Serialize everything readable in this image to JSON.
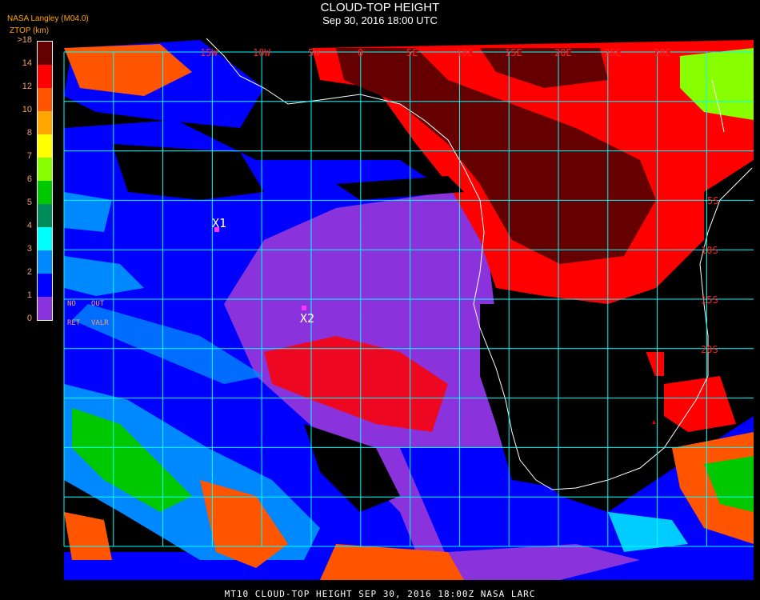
{
  "header": {
    "title": "CLOUD-TOP HEIGHT",
    "subtitle": "Sep 30, 2016 18:00 UTC",
    "org": "NASA Langley (M04.0)",
    "unit_label": "ZTOP (km)"
  },
  "legend": {
    "ticks": [
      "0",
      "1",
      "2",
      "3",
      "4",
      "5",
      "6",
      "7",
      "8",
      "10",
      "12",
      "14",
      ">18"
    ],
    "colors": [
      "#8a33dd",
      "#0000ff",
      "#0088ff",
      "#00ffff",
      "#008c5a",
      "#00c800",
      "#88ff00",
      "#ffff00",
      "#ffa500",
      "#ff5500",
      "#ff0000",
      "#640000"
    ],
    "no_ret": "NO",
    "ret": "RET",
    "out": "OUT",
    "valr": "VALR"
  },
  "map": {
    "lon_labels": [
      "15W",
      "10W",
      "5W",
      "0",
      "5E",
      "10E",
      "15E",
      "20E",
      "25E",
      "30E"
    ],
    "lat_labels": [
      "5S",
      "10S",
      "15S",
      "20S"
    ],
    "markers": [
      "X1",
      "X2"
    ],
    "grid_color": "#00ffff",
    "coast_color": "#ffffff",
    "marker_color": "#ff33ff"
  },
  "footer": "MT10  CLOUD-TOP HEIGHT   SEP 30, 2016 18:00Z   NASA LARC"
}
